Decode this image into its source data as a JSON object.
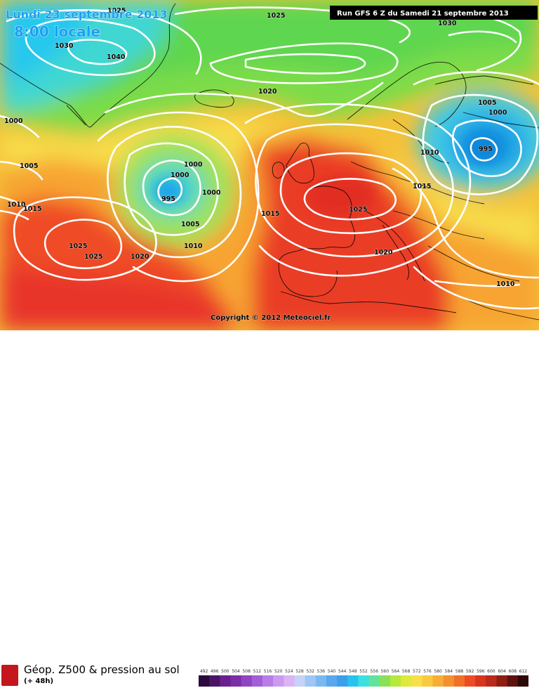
{
  "title": {
    "date": "Lundi 23 septembre 2013",
    "time": "8:00 locale"
  },
  "run_info": "Run GFS 6 Z du Samedi 21 septembre 2013",
  "copyright": "Copyright © 2012 Meteociel.fr",
  "legend": {
    "title": "Géop. Z500 & pression au sol",
    "subtitle": "(+ 48h)",
    "scale_values": [
      "492",
      "496",
      "500",
      "504",
      "508",
      "512",
      "516",
      "520",
      "524",
      "528",
      "532",
      "536",
      "540",
      "544",
      "548",
      "552",
      "556",
      "560",
      "564",
      "568",
      "572",
      "576",
      "580",
      "584",
      "588",
      "592",
      "596",
      "600",
      "604",
      "608",
      "612"
    ],
    "scale_colors": [
      "#2b0a3d",
      "#4a1466",
      "#6a1f8f",
      "#7a2ea8",
      "#8f45c2",
      "#a35fd6",
      "#b87de6",
      "#cc9af0",
      "#dcb3f5",
      "#c6d2f7",
      "#9fc6f5",
      "#7ab8f2",
      "#5aa7ee",
      "#3ba0ea",
      "#27c3ee",
      "#3ce0de",
      "#63e39a",
      "#8be05a",
      "#b7e83c",
      "#dfe93a",
      "#f7e04a",
      "#f9c93f",
      "#f7ad36",
      "#f4902d",
      "#f07027",
      "#ec4d24",
      "#d8351f",
      "#b82a1a",
      "#8e1d14",
      "#5e120d",
      "#2c0806"
    ]
  },
  "pressure_labels": [
    {
      "text": "1025"
    },
    {
      "text": "1025"
    },
    {
      "text": "1030"
    },
    {
      "text": "1030"
    },
    {
      "text": "1040"
    },
    {
      "text": "1020"
    },
    {
      "text": "1000"
    },
    {
      "text": "1005"
    },
    {
      "text": "1010"
    },
    {
      "text": "1015"
    },
    {
      "text": "1000"
    },
    {
      "text": "1000"
    },
    {
      "text": "995"
    },
    {
      "text": "1000"
    },
    {
      "text": "1005"
    },
    {
      "text": "1010"
    },
    {
      "text": "1025"
    },
    {
      "text": "1025"
    },
    {
      "text": "1020"
    },
    {
      "text": "1015"
    },
    {
      "text": "1025"
    },
    {
      "text": "1020"
    },
    {
      "text": "1010"
    },
    {
      "text": "1015"
    },
    {
      "text": "1005"
    },
    {
      "text": "1000"
    },
    {
      "text": "995"
    },
    {
      "text": "1010"
    }
  ],
  "colors": {
    "high_geop": "#e8342a",
    "mid_geop": "#f5d64a",
    "low_geop": "#1fc8f0",
    "isobar": "#ffffff"
  }
}
